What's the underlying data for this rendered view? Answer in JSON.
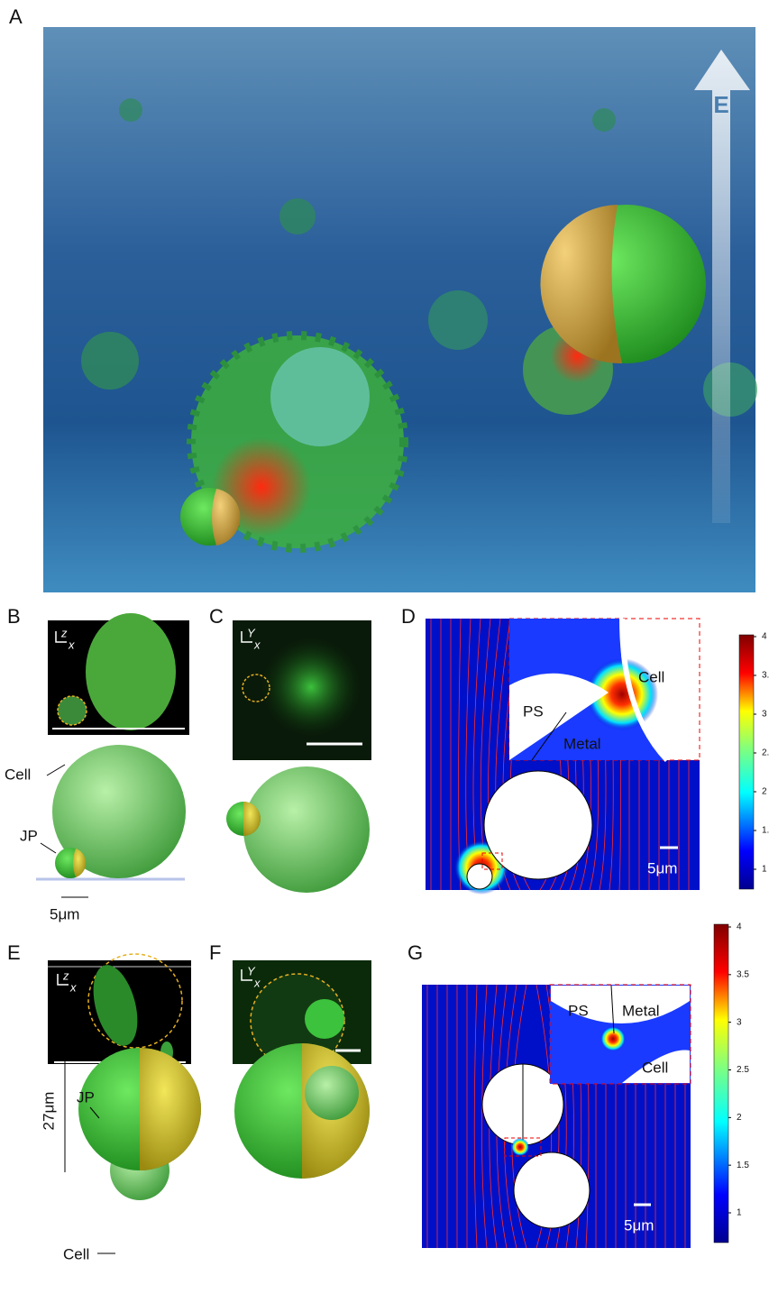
{
  "panels": {
    "A": {
      "label": "A",
      "arrow_label": "E"
    },
    "B": {
      "label": "B",
      "axis_v": "z",
      "axis_h": "x",
      "cell_label": "Cell",
      "jp_label": "JP",
      "scale_label": "5μm"
    },
    "C": {
      "label": "C",
      "axis_v": "Y",
      "axis_h": "x"
    },
    "D": {
      "label": "D",
      "inset_labels": [
        "Cell",
        "PS",
        "Metal"
      ],
      "scale_label": "5μm",
      "colorbar_ticks": [
        "4",
        "3.",
        "3",
        "2.",
        "2",
        "1.",
        "1"
      ]
    },
    "E": {
      "label": "E",
      "axis_v": "z",
      "axis_h": "x",
      "jp_label": "JP",
      "size_label": "27μm",
      "cell_label": "Cell"
    },
    "F": {
      "label": "F",
      "axis_v": "Y",
      "axis_h": "x"
    },
    "G": {
      "label": "G",
      "inset_labels": [
        "PS",
        "Metal",
        "Cell"
      ],
      "scale_label": "5μm",
      "colorbar_ticks": [
        "4",
        "3.5",
        "3",
        "2.5",
        "2",
        "1.5",
        "1"
      ]
    }
  }
}
